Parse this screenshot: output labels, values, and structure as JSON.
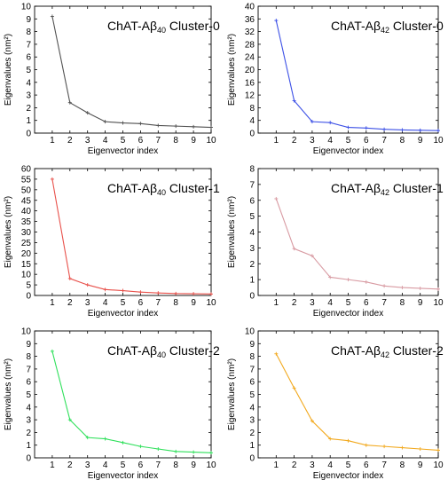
{
  "chart_data": [
    {
      "type": "line",
      "title_parts": [
        "ChAT-Aβ",
        "40",
        " Cluster-0"
      ],
      "xlabel": "Eigenvector index",
      "ylabel": "Eigenvalues (nm²)",
      "x": [
        1,
        2,
        3,
        4,
        5,
        6,
        7,
        8,
        9,
        10
      ],
      "values": [
        9.2,
        2.4,
        1.6,
        0.9,
        0.8,
        0.75,
        0.6,
        0.55,
        0.5,
        0.45
      ],
      "xlim": [
        0,
        10
      ],
      "ylim": [
        0,
        10
      ],
      "yticks": [
        0,
        1,
        2,
        3,
        4,
        5,
        6,
        7,
        8,
        9,
        10
      ],
      "color": "#505050"
    },
    {
      "type": "line",
      "title_parts": [
        "ChAT-Aβ",
        "42",
        " Cluster-0"
      ],
      "xlabel": "Eigenvector index",
      "ylabel": "Eigenvalues (nm²)",
      "x": [
        1,
        2,
        3,
        4,
        5,
        6,
        7,
        8,
        9,
        10
      ],
      "values": [
        35.5,
        10.2,
        3.6,
        3.3,
        1.8,
        1.6,
        1.2,
        1.0,
        0.9,
        0.8
      ],
      "xlim": [
        0,
        10
      ],
      "ylim": [
        0,
        40
      ],
      "yticks": [
        0,
        4,
        8,
        12,
        16,
        20,
        24,
        28,
        32,
        36,
        40
      ],
      "color": "#3c50e6"
    },
    {
      "type": "line",
      "title_parts": [
        "ChAT-Aβ",
        "40",
        " Cluster-1"
      ],
      "xlabel": "Eigenvector index",
      "ylabel": "Eigenvalues (nm²)",
      "x": [
        1,
        2,
        3,
        4,
        5,
        6,
        7,
        8,
        9,
        10
      ],
      "values": [
        55,
        8,
        5,
        2.8,
        2.3,
        1.6,
        1.2,
        0.9,
        0.8,
        0.7
      ],
      "xlim": [
        0,
        10
      ],
      "ylim": [
        0,
        60
      ],
      "yticks": [
        0,
        5,
        10,
        15,
        20,
        25,
        30,
        35,
        40,
        45,
        50,
        55,
        60
      ],
      "color": "#e8504a"
    },
    {
      "type": "line",
      "title_parts": [
        "ChAT-Aβ",
        "42",
        " Cluster-1"
      ],
      "xlabel": "Eigenvector index",
      "ylabel": "Eigenvalues (nm²)",
      "x": [
        1,
        2,
        3,
        4,
        5,
        6,
        7,
        8,
        9,
        10
      ],
      "values": [
        6.1,
        2.95,
        2.5,
        1.15,
        1.0,
        0.85,
        0.6,
        0.5,
        0.45,
        0.4
      ],
      "xlim": [
        0,
        10
      ],
      "ylim": [
        0,
        8
      ],
      "yticks": [
        0,
        1,
        2,
        3,
        4,
        5,
        6,
        7,
        8
      ],
      "color": "#d89aa2"
    },
    {
      "type": "line",
      "title_parts": [
        "ChAT-Aβ",
        "40",
        " Cluster-2"
      ],
      "xlabel": "Eigenvector index",
      "ylabel": "Eigenvalues (nm²)",
      "x": [
        1,
        2,
        3,
        4,
        5,
        6,
        7,
        8,
        9,
        10
      ],
      "values": [
        8.4,
        3.0,
        1.6,
        1.5,
        1.2,
        0.9,
        0.7,
        0.5,
        0.45,
        0.4
      ],
      "xlim": [
        0,
        10
      ],
      "ylim": [
        0,
        10
      ],
      "yticks": [
        0,
        1,
        2,
        3,
        4,
        5,
        6,
        7,
        8,
        9,
        10
      ],
      "color": "#2ee05a"
    },
    {
      "type": "line",
      "title_parts": [
        "ChAT-Aβ",
        "42",
        " Cluster-2"
      ],
      "xlabel": "Eigenvector index",
      "ylabel": "Eigenvalues (nm²)",
      "x": [
        1,
        2,
        3,
        4,
        5,
        6,
        7,
        8,
        9,
        10
      ],
      "values": [
        8.2,
        5.5,
        2.9,
        1.5,
        1.35,
        1.0,
        0.9,
        0.8,
        0.7,
        0.6
      ],
      "xlim": [
        0,
        10
      ],
      "ylim": [
        0,
        10
      ],
      "yticks": [
        0,
        1,
        2,
        3,
        4,
        5,
        6,
        7,
        8,
        9,
        10
      ],
      "color": "#f2a91e"
    }
  ]
}
